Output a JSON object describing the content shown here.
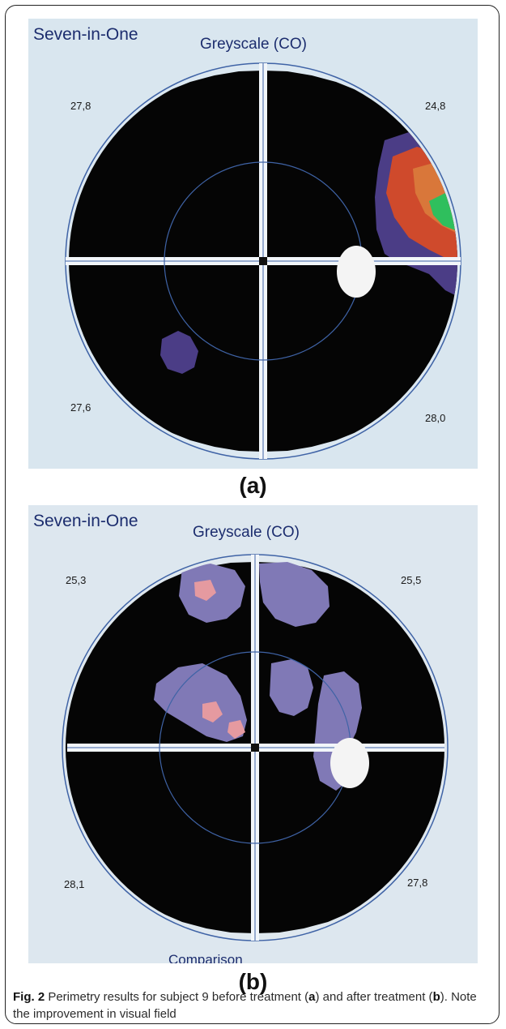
{
  "panel_a": {
    "app_title": "Seven-in-One",
    "mode": "Greyscale (CO)",
    "quadrants": {
      "top_left": "27,8",
      "top_right": "24,8",
      "bottom_left": "27,6",
      "bottom_right": "28,0"
    },
    "letter": "(a)"
  },
  "panel_b": {
    "app_title": "Seven-in-One",
    "mode": "Greyscale (CO)",
    "quadrants": {
      "top_left": "25,3",
      "top_right": "25,5",
      "bottom_left": "28,1",
      "bottom_right": "27,8"
    },
    "bottom_cut_label": "Comparison",
    "letter": "(b)"
  },
  "caption": {
    "fig_label": "Fig. 2",
    "text_1": " Perimetry results for subject 9 before treatment (",
    "a": "a",
    "text_2": ") and after treatment (",
    "b": "b",
    "text_3": "). Note the improvement in visual field"
  },
  "colors": {
    "field": "#050505",
    "outline": "#3f63a6",
    "defect_blue": "#4b3d86",
    "defect_red": "#cf4a2c",
    "defect_orange": "#d9773a",
    "defect_green": "#2fbf5d",
    "defect_lavender": "#8079b6",
    "defect_pink": "#e59aa0"
  }
}
